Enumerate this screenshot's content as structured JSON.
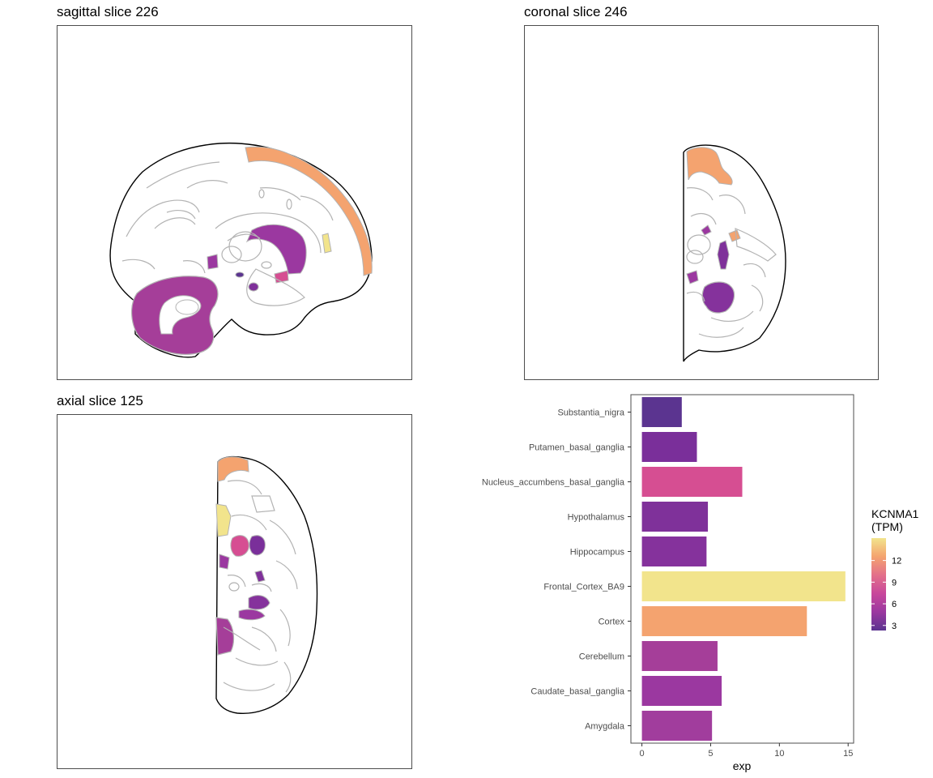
{
  "panels": {
    "sagittal": {
      "title": "sagittal slice 226"
    },
    "coronal": {
      "title": "coronal slice 246"
    },
    "axial": {
      "title": "axial slice 125"
    }
  },
  "colors": {
    "outline": "#b3b3b3",
    "edge": "#000000",
    "cortex": "#f4a36f",
    "frontal": "#f2e48c",
    "cerebellum": "#a53e99",
    "caudate": "#9b38a0",
    "putamen": "#7a2f9a",
    "hippocampus": "#85329c",
    "hypothalamus": "#7f319a",
    "nigra": "#5b3490",
    "accumbens": "#d64e92"
  },
  "chart_data": {
    "type": "bar",
    "orientation": "horizontal",
    "categories": [
      "Substantia_nigra",
      "Putamen_basal_ganglia",
      "Nucleus_accumbens_basal_ganglia",
      "Hypothalamus",
      "Hippocampus",
      "Frontal_Cortex_BA9",
      "Cortex",
      "Cerebellum",
      "Caudate_basal_ganglia",
      "Amygdala"
    ],
    "values": [
      2.9,
      4.0,
      7.3,
      4.8,
      4.7,
      14.8,
      12.0,
      5.5,
      5.8,
      5.1
    ],
    "bar_colors": [
      "#5b3490",
      "#7a2f9a",
      "#d64e92",
      "#7f319a",
      "#85329c",
      "#f2e48c",
      "#f4a36f",
      "#a53e99",
      "#9b38a0",
      "#a13d9d"
    ],
    "xlabel": "exp",
    "xlim": [
      -0.8,
      15.4
    ],
    "xticks": [
      0,
      5,
      10,
      15
    ],
    "grid": false,
    "legend": {
      "title_line1": "KCNMA1",
      "title_line2": "(TPM)",
      "ticks": [
        12,
        9,
        6,
        3
      ],
      "range": [
        2.3,
        15.1
      ],
      "gradient": [
        "#f2e48c",
        "#f4a36f",
        "#e3708a",
        "#c8479b",
        "#9b38a0",
        "#5b3490"
      ],
      "placement": "right"
    }
  }
}
